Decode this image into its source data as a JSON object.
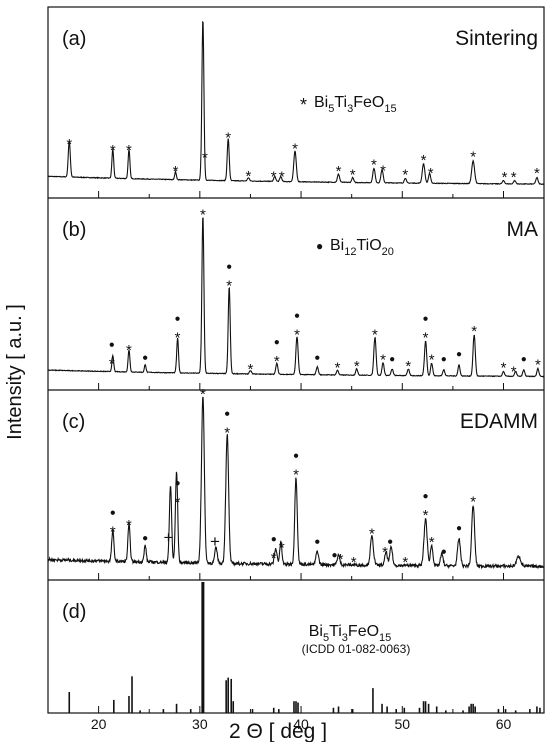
{
  "chart_data": {
    "type": "line",
    "xlabel": "2 Θ  [ deg ]",
    "ylabel": "Intensity [ a.u. ]",
    "xlim": [
      15,
      64
    ],
    "x_ticks": [
      20,
      30,
      40,
      50,
      60
    ],
    "x_tick_labels": [
      "20",
      "30",
      "40",
      "50",
      "60"
    ],
    "grid": false,
    "colors": {
      "line": "#111111",
      "axis": "#111111",
      "background": "#ffffff"
    },
    "panels": [
      {
        "letter": "(a)",
        "title": "Sintering",
        "legend": {
          "marker": "*",
          "formula": "Bi5Ti3FeO15",
          "parts": [
            [
              "Bi",
              ""
            ],
            [
              "5",
              "sub"
            ],
            [
              "Ti",
              ""
            ],
            [
              "3",
              "sub"
            ],
            [
              "FeO",
              ""
            ],
            [
              "15",
              "sub"
            ]
          ]
        },
        "baseline": 0.06,
        "noise": 0.004,
        "peaks": [
          [
            17.1,
            0.22,
            0.2
          ],
          [
            21.4,
            0.18,
            0.18
          ],
          [
            23.0,
            0.18,
            0.18
          ],
          [
            27.6,
            0.05,
            0.16
          ],
          [
            30.3,
            1.0,
            0.2
          ],
          [
            32.8,
            0.26,
            0.2
          ],
          [
            34.8,
            0.02,
            0.2
          ],
          [
            37.4,
            0.03,
            0.2
          ],
          [
            38.0,
            0.03,
            0.2
          ],
          [
            39.4,
            0.19,
            0.25
          ],
          [
            43.7,
            0.05,
            0.22
          ],
          [
            45.1,
            0.03,
            0.2
          ],
          [
            47.2,
            0.09,
            0.22
          ],
          [
            48.0,
            0.08,
            0.22
          ],
          [
            50.3,
            0.03,
            0.2
          ],
          [
            52.1,
            0.12,
            0.25
          ],
          [
            52.7,
            0.06,
            0.22
          ],
          [
            57.0,
            0.14,
            0.28
          ],
          [
            60.0,
            0.02,
            0.22
          ],
          [
            61.1,
            0.02,
            0.22
          ],
          [
            63.3,
            0.04,
            0.22
          ]
        ],
        "annotations": [
          {
            "x": 17.1,
            "mark": "*"
          },
          {
            "x": 21.4,
            "mark": "*"
          },
          {
            "x": 23.0,
            "mark": "*"
          },
          {
            "x": 27.6,
            "mark": "*"
          },
          {
            "x": 30.5,
            "mark": "*"
          },
          {
            "x": 32.8,
            "mark": "*"
          },
          {
            "x": 34.8,
            "mark": "*"
          },
          {
            "x": 37.3,
            "mark": "*"
          },
          {
            "x": 38.1,
            "mark": "*"
          },
          {
            "x": 39.4,
            "mark": "*"
          },
          {
            "x": 43.7,
            "mark": "*"
          },
          {
            "x": 45.1,
            "mark": "*"
          },
          {
            "x": 47.2,
            "mark": "*"
          },
          {
            "x": 48.1,
            "mark": "*"
          },
          {
            "x": 50.3,
            "mark": "*"
          },
          {
            "x": 52.1,
            "mark": "*"
          },
          {
            "x": 52.8,
            "mark": "*"
          },
          {
            "x": 57.0,
            "mark": "*"
          },
          {
            "x": 60.1,
            "mark": "*"
          },
          {
            "x": 61.0,
            "mark": "*"
          },
          {
            "x": 63.3,
            "mark": "*"
          }
        ]
      },
      {
        "letter": "(b)",
        "title": "MA",
        "legend": {
          "marker": "●",
          "formula": "Bi12TiO20",
          "parts": [
            [
              "Bi",
              ""
            ],
            [
              "12",
              "sub"
            ],
            [
              "TiO",
              ""
            ],
            [
              "20",
              "sub"
            ]
          ]
        },
        "baseline": 0.05,
        "noise": 0.004,
        "peaks": [
          [
            21.4,
            0.1,
            0.18
          ],
          [
            23.0,
            0.14,
            0.18
          ],
          [
            24.6,
            0.05,
            0.16
          ],
          [
            27.8,
            0.22,
            0.18
          ],
          [
            30.3,
            1.0,
            0.2
          ],
          [
            32.9,
            0.55,
            0.2
          ],
          [
            35.0,
            0.02,
            0.2
          ],
          [
            37.6,
            0.07,
            0.2
          ],
          [
            39.6,
            0.24,
            0.22
          ],
          [
            41.6,
            0.05,
            0.2
          ],
          [
            43.6,
            0.03,
            0.2
          ],
          [
            45.5,
            0.04,
            0.2
          ],
          [
            47.3,
            0.24,
            0.22
          ],
          [
            48.1,
            0.08,
            0.2
          ],
          [
            49.0,
            0.04,
            0.2
          ],
          [
            50.6,
            0.04,
            0.2
          ],
          [
            52.3,
            0.22,
            0.22
          ],
          [
            52.9,
            0.08,
            0.2
          ],
          [
            54.1,
            0.04,
            0.2
          ],
          [
            55.6,
            0.07,
            0.2
          ],
          [
            57.1,
            0.26,
            0.22
          ],
          [
            60.0,
            0.03,
            0.2
          ],
          [
            61.2,
            0.03,
            0.2
          ],
          [
            62.0,
            0.04,
            0.2
          ],
          [
            63.4,
            0.05,
            0.2
          ]
        ],
        "annotations": [
          {
            "x": 21.3,
            "mark": "●*"
          },
          {
            "x": 23.0,
            "mark": "*"
          },
          {
            "x": 24.6,
            "mark": "●"
          },
          {
            "x": 27.8,
            "mark": "●*"
          },
          {
            "x": 30.3,
            "mark": "*"
          },
          {
            "x": 32.9,
            "mark": "●*"
          },
          {
            "x": 35.0,
            "mark": "*"
          },
          {
            "x": 37.6,
            "mark": "●*"
          },
          {
            "x": 39.6,
            "mark": "●*"
          },
          {
            "x": 41.6,
            "mark": "●"
          },
          {
            "x": 43.6,
            "mark": "*"
          },
          {
            "x": 45.5,
            "mark": "*"
          },
          {
            "x": 47.3,
            "mark": "*"
          },
          {
            "x": 48.1,
            "mark": "*"
          },
          {
            "x": 49.0,
            "mark": "●"
          },
          {
            "x": 50.6,
            "mark": "*"
          },
          {
            "x": 52.3,
            "mark": "●*"
          },
          {
            "x": 52.9,
            "mark": "*"
          },
          {
            "x": 54.1,
            "mark": "●"
          },
          {
            "x": 55.6,
            "mark": "●"
          },
          {
            "x": 57.1,
            "mark": "*"
          },
          {
            "x": 60.0,
            "mark": "*"
          },
          {
            "x": 61.0,
            "mark": "*"
          },
          {
            "x": 62.0,
            "mark": "●"
          },
          {
            "x": 63.4,
            "mark": "*"
          }
        ]
      },
      {
        "letter": "(c)",
        "title": "EDAMM",
        "legend": null,
        "baseline": 0.05,
        "noise": 0.018,
        "peaks": [
          [
            21.4,
            0.18,
            0.22
          ],
          [
            23.0,
            0.22,
            0.22
          ],
          [
            24.6,
            0.1,
            0.2
          ],
          [
            27.1,
            0.46,
            0.22
          ],
          [
            27.7,
            0.54,
            0.22
          ],
          [
            30.3,
            1.0,
            0.28
          ],
          [
            31.6,
            0.09,
            0.25
          ],
          [
            32.7,
            0.77,
            0.28
          ],
          [
            37.5,
            0.09,
            0.25
          ],
          [
            38.0,
            0.13,
            0.22
          ],
          [
            39.5,
            0.52,
            0.25
          ],
          [
            41.6,
            0.08,
            0.25
          ],
          [
            43.7,
            0.06,
            0.25
          ],
          [
            47.0,
            0.17,
            0.3
          ],
          [
            48.4,
            0.08,
            0.25
          ],
          [
            48.9,
            0.11,
            0.25
          ],
          [
            52.3,
            0.28,
            0.3
          ],
          [
            52.9,
            0.12,
            0.25
          ],
          [
            53.9,
            0.07,
            0.25
          ],
          [
            55.6,
            0.16,
            0.28
          ],
          [
            57.0,
            0.36,
            0.28
          ],
          [
            61.5,
            0.06,
            0.4
          ]
        ],
        "annotations": [
          {
            "x": 21.4,
            "mark": "●*"
          },
          {
            "x": 23.0,
            "mark": "*"
          },
          {
            "x": 24.6,
            "mark": "●"
          },
          {
            "x": 26.9,
            "mark": "+"
          },
          {
            "x": 27.8,
            "mark": "●*"
          },
          {
            "x": 30.3,
            "mark": "*"
          },
          {
            "x": 31.5,
            "mark": "+"
          },
          {
            "x": 32.7,
            "mark": "●*"
          },
          {
            "x": 37.3,
            "mark": "●*"
          },
          {
            "x": 38.1,
            "mark": "*"
          },
          {
            "x": 39.5,
            "mark": "●*"
          },
          {
            "x": 41.6,
            "mark": "●"
          },
          {
            "x": 43.3,
            "mark": "●"
          },
          {
            "x": 43.9,
            "mark": "*"
          },
          {
            "x": 45.2,
            "mark": "*"
          },
          {
            "x": 47.0,
            "mark": "*"
          },
          {
            "x": 48.3,
            "mark": "*"
          },
          {
            "x": 48.8,
            "mark": "●"
          },
          {
            "x": 50.3,
            "mark": "*"
          },
          {
            "x": 52.3,
            "mark": "●*"
          },
          {
            "x": 52.9,
            "mark": "*"
          },
          {
            "x": 54.1,
            "mark": "●"
          },
          {
            "x": 55.6,
            "mark": "●"
          },
          {
            "x": 57.0,
            "mark": "*"
          }
        ]
      },
      {
        "letter": "(d)",
        "title": "",
        "legend": null,
        "reference": {
          "formula": "Bi5Ti3FeO15",
          "parts": [
            [
              "Bi",
              ""
            ],
            [
              "5",
              "sub"
            ],
            [
              "Ti",
              ""
            ],
            [
              "3",
              "sub"
            ],
            [
              "FeO",
              ""
            ],
            [
              "15",
              "sub"
            ]
          ],
          "source": "(ICDD 01-082-0063)"
        },
        "sticks": [
          [
            17.1,
            0.16
          ],
          [
            21.5,
            0.1
          ],
          [
            23.0,
            0.13
          ],
          [
            23.3,
            0.28
          ],
          [
            24.1,
            0.02
          ],
          [
            26.4,
            0.03
          ],
          [
            27.7,
            0.07
          ],
          [
            29.1,
            0.03
          ],
          [
            30.3,
            1.0
          ],
          [
            32.6,
            0.25
          ],
          [
            32.8,
            0.27
          ],
          [
            33.1,
            0.26
          ],
          [
            33.3,
            0.09
          ],
          [
            35.2,
            0.03
          ],
          [
            37.3,
            0.04
          ],
          [
            37.8,
            0.03
          ],
          [
            39.3,
            0.09
          ],
          [
            39.5,
            0.09
          ],
          [
            39.7,
            0.08
          ],
          [
            43.2,
            0.04
          ],
          [
            43.7,
            0.05
          ],
          [
            45.1,
            0.03
          ],
          [
            47.1,
            0.19
          ],
          [
            48.0,
            0.07
          ],
          [
            48.5,
            0.05
          ],
          [
            49.4,
            0.03
          ],
          [
            50.2,
            0.04
          ],
          [
            51.7,
            0.04
          ],
          [
            52.1,
            0.09
          ],
          [
            52.3,
            0.09
          ],
          [
            52.6,
            0.07
          ],
          [
            53.4,
            0.05
          ],
          [
            54.3,
            0.02
          ],
          [
            56.0,
            0.02
          ],
          [
            56.6,
            0.05
          ],
          [
            56.8,
            0.07
          ],
          [
            57.0,
            0.07
          ],
          [
            57.2,
            0.05
          ],
          [
            59.5,
            0.03
          ],
          [
            60.2,
            0.03
          ],
          [
            61.2,
            0.02
          ],
          [
            62.6,
            0.03
          ],
          [
            63.3,
            0.05
          ],
          [
            63.6,
            0.04
          ]
        ]
      }
    ]
  }
}
